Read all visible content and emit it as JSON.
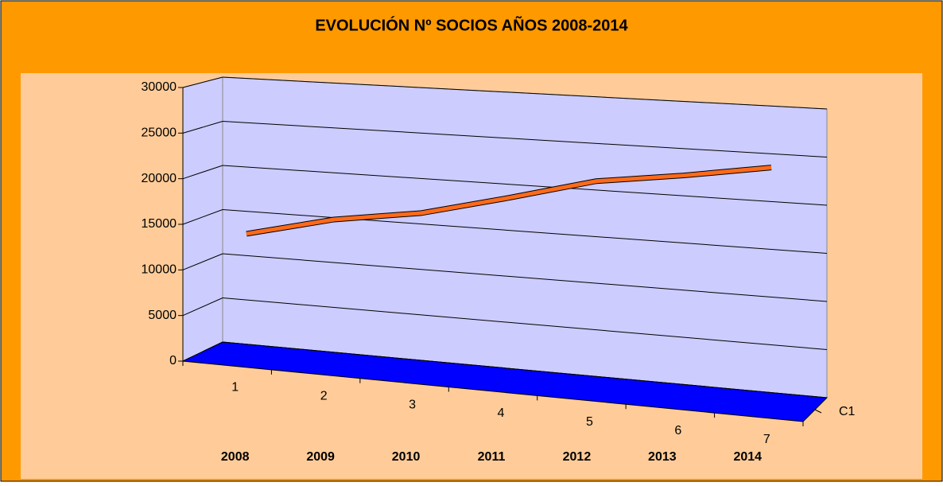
{
  "chart_data": {
    "type": "line3d",
    "title": "EVOLUCIÓN Nº SOCIOS AÑOS 2008-2014",
    "categories": [
      "1",
      "2",
      "3",
      "4",
      "5",
      "6",
      "7"
    ],
    "year_labels": [
      "2008",
      "2009",
      "2010",
      "2011",
      "2012",
      "2013",
      "2014"
    ],
    "series": [
      {
        "name": "C1",
        "color": "#ff6a1a",
        "values": [
          13500,
          15800,
          17200,
          19500,
          21900,
          23100,
          24500
        ]
      }
    ],
    "ylim": [
      0,
      30000
    ],
    "yticks": [
      0,
      5000,
      10000,
      15000,
      20000,
      25000,
      30000
    ],
    "grid": true,
    "wall_color": "#ccccff",
    "floor_color": "#0000ff",
    "background": "#ff9900",
    "plot_background": "#ffcc99"
  }
}
